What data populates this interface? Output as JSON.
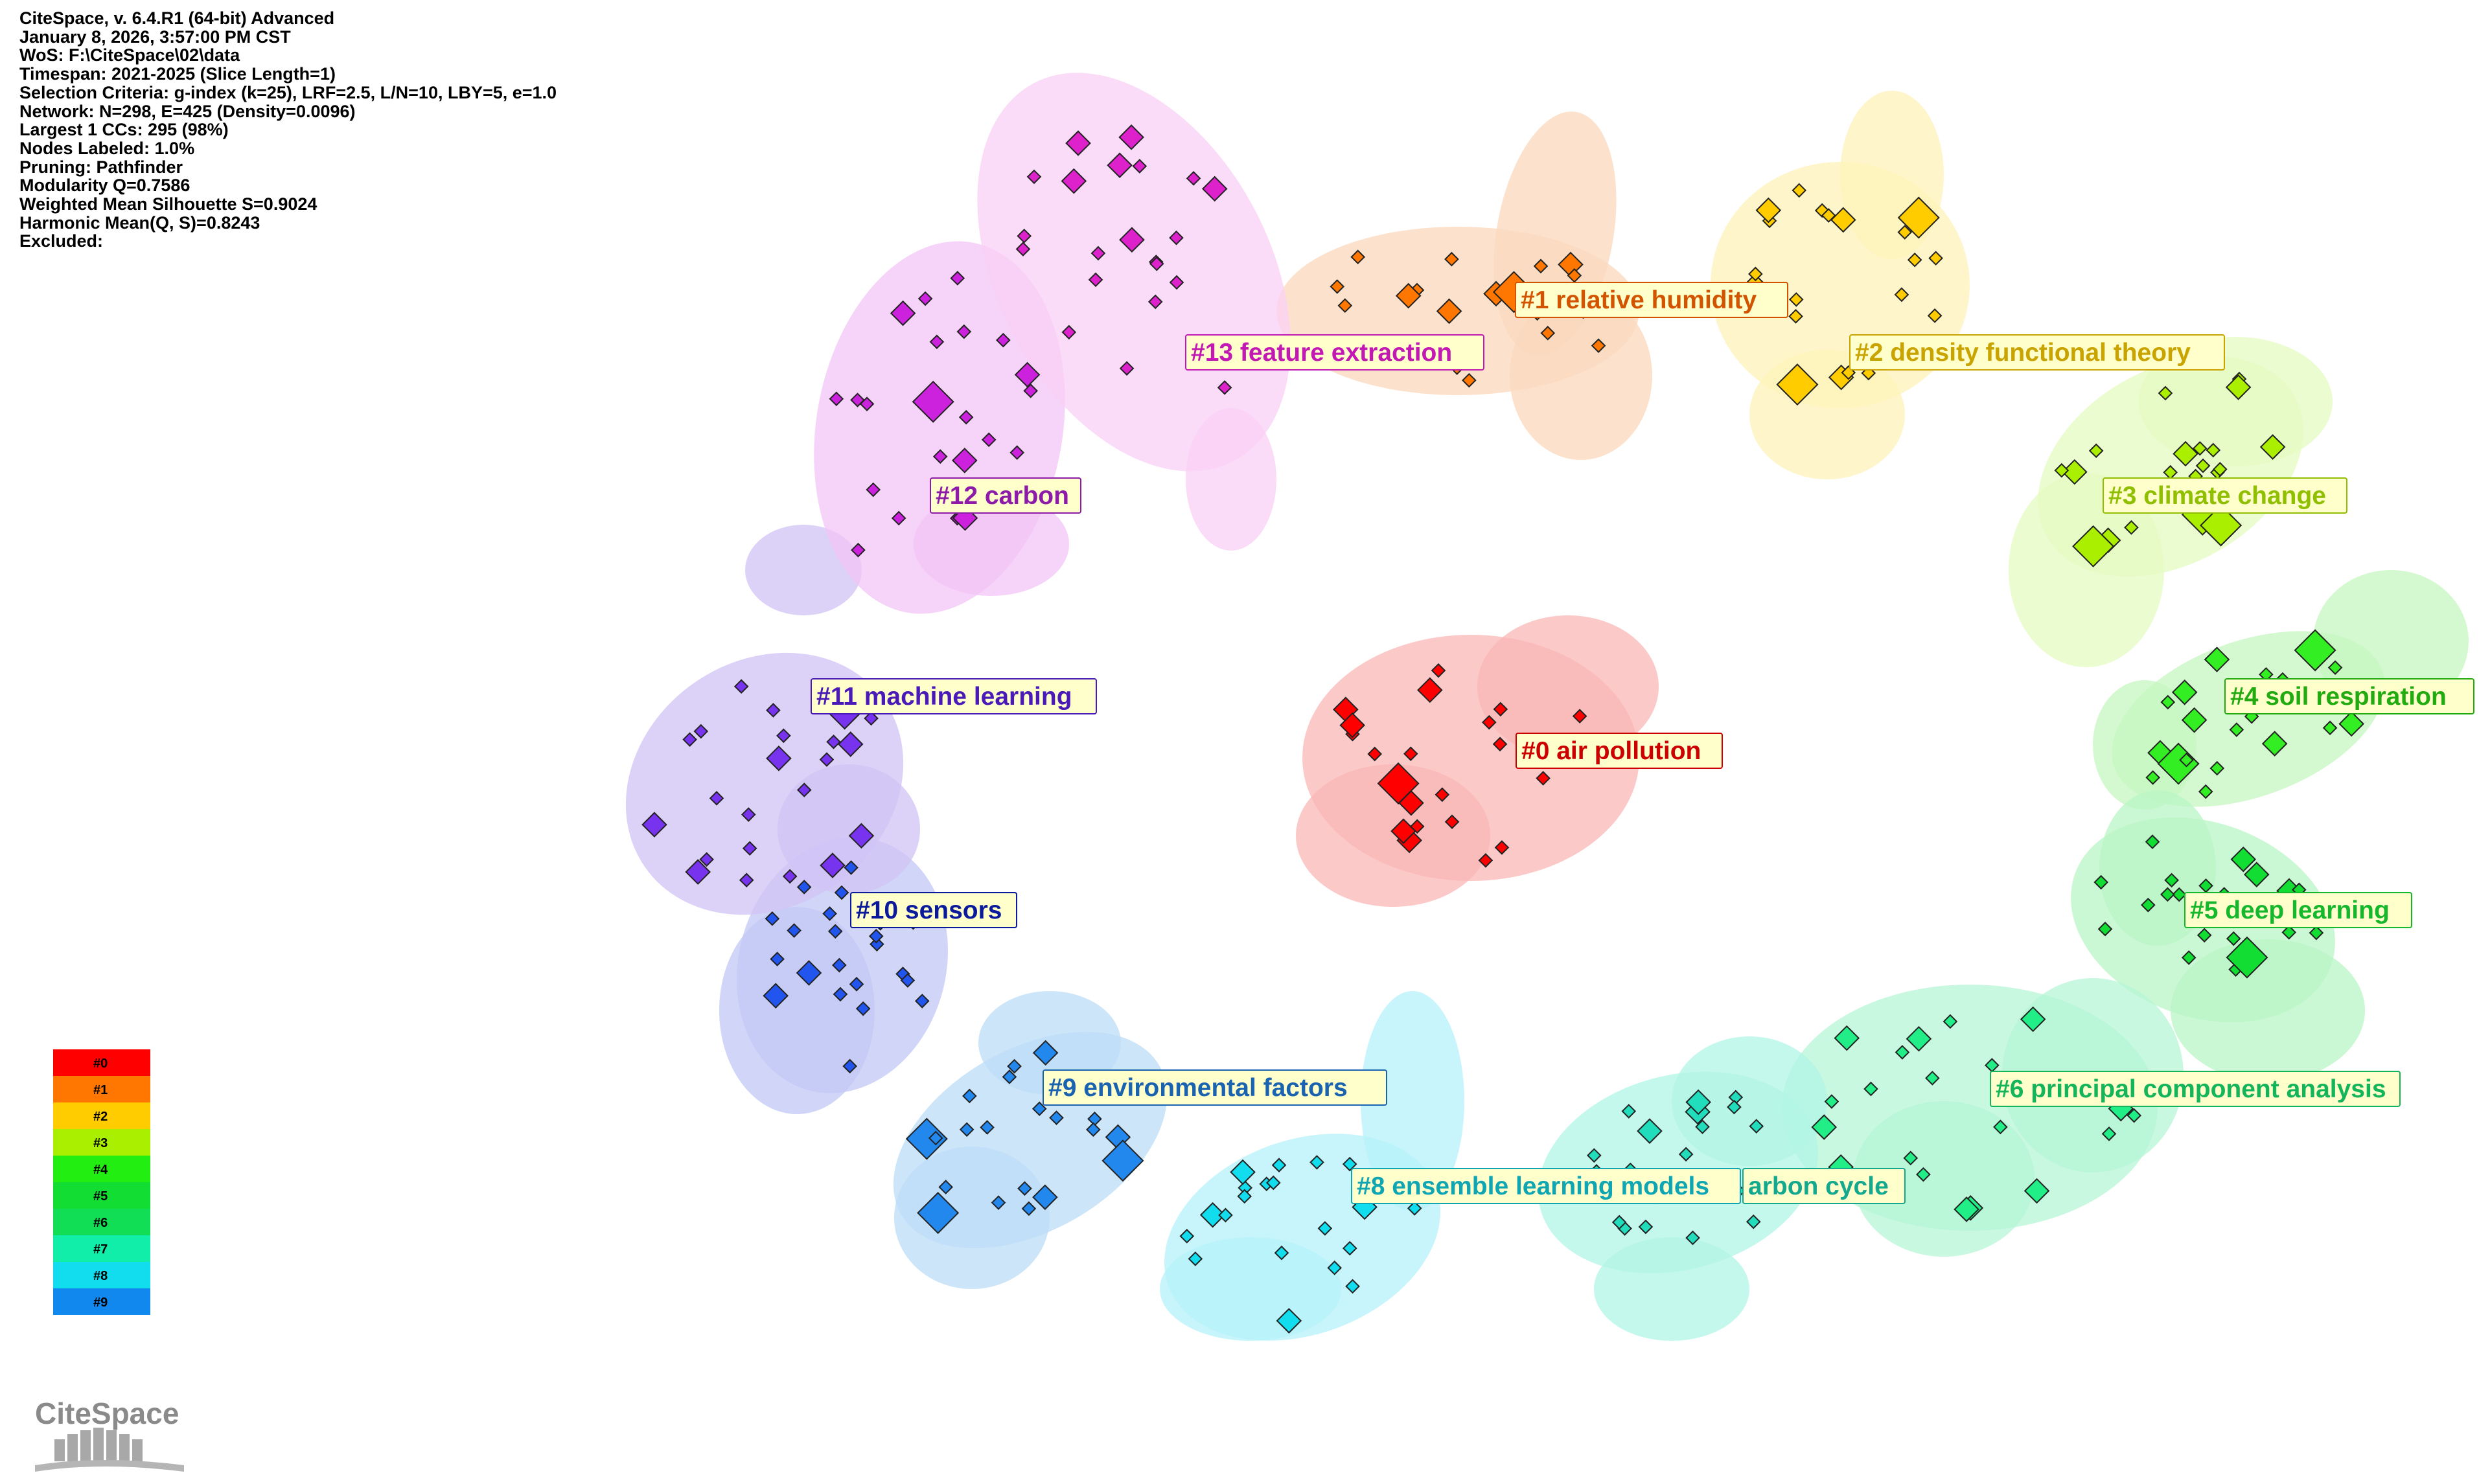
{
  "info_lines": [
    "CiteSpace, v. 6.4.R1 (64-bit) Advanced",
    "January 8, 2026, 3:57:00 PM CST",
    "WoS: F:\\CiteSpace\\02\\data",
    "Timespan: 2021-2025 (Slice Length=1)",
    "Selection Criteria: g-index (k=25), LRF=2.5, L/N=10, LBY=5, e=1.0",
    "Network: N=298, E=425 (Density=0.0096)",
    "Largest 1 CCs: 295 (98%)",
    "Nodes Labeled: 1.0%",
    "Pruning: Pathfinder",
    "Modularity Q=0.7586",
    "Weighted Mean Silhouette S=0.9024",
    "Harmonic Mean(Q, S)=0.8243",
    "Excluded:"
  ],
  "clusters": [
    {
      "id": "#0",
      "label": "#0 air pollution",
      "color": "#ff0000",
      "hull": "#f9b7b5",
      "text": "#cc0000"
    },
    {
      "id": "#1",
      "label": "#1 relative humidity",
      "color": "#ff7700",
      "hull": "#fbd8bc",
      "text": "#d35400"
    },
    {
      "id": "#2",
      "label": "#2 density functional theory",
      "color": "#ffcc00",
      "hull": "#fdf3b8",
      "text": "#c9a300"
    },
    {
      "id": "#3",
      "label": "#3 climate change",
      "color": "#aaee00",
      "hull": "#e6fbc2",
      "text": "#8fbf00"
    },
    {
      "id": "#4",
      "label": "#4 soil respiration",
      "color": "#33ee22",
      "hull": "#c5f7c0",
      "text": "#22aa11"
    },
    {
      "id": "#5",
      "label": "#5 deep learning",
      "color": "#11dd33",
      "hull": "#baf5c5",
      "text": "#15b82c"
    },
    {
      "id": "#6",
      "label": "#6 principal component analysis",
      "color": "#22ee88",
      "hull": "#b6f5d6",
      "text": "#13b45a"
    },
    {
      "id": "#7",
      "label": "arbon cycle",
      "color": "#22ddbb",
      "hull": "#b2f5e6",
      "text": "#14a88e"
    },
    {
      "id": "#8",
      "label": "#8 ensemble learning models",
      "color": "#11ddee",
      "hull": "#b5f2fa",
      "text": "#10a5b3"
    },
    {
      "id": "#9",
      "label": "#9 environmental factors",
      "color": "#2288ee",
      "hull": "#bcdcf7",
      "text": "#1a63b0"
    },
    {
      "id": "#10",
      "label": "#10 sensors",
      "color": "#2255ee",
      "hull": "#c2c8f6",
      "text": "#0a1a9a"
    },
    {
      "id": "#11",
      "label": "#11 machine learning",
      "color": "#7733ee",
      "hull": "#d0c3f6",
      "text": "#4a1ab8"
    },
    {
      "id": "#12",
      "label": "#12 carbon",
      "color": "#cc22dd",
      "hull": "#f3c4f6",
      "text": "#8d1aa8"
    },
    {
      "id": "#13",
      "label": "#13 feature extraction",
      "color": "#dd22cc",
      "hull": "#f9d0f6",
      "text": "#c218b4"
    }
  ],
  "legend": [
    {
      "label": "#0",
      "color": "#ff0000"
    },
    {
      "label": "#1",
      "color": "#ff7700"
    },
    {
      "label": "#2",
      "color": "#ffcc00"
    },
    {
      "label": "#3",
      "color": "#aaee00"
    },
    {
      "label": "#4",
      "color": "#22ee11"
    },
    {
      "label": "#5",
      "color": "#11dd33"
    },
    {
      "label": "#6",
      "color": "#11dd55"
    },
    {
      "label": "#7",
      "color": "#11eeaa"
    },
    {
      "label": "#8",
      "color": "#11ddee"
    },
    {
      "label": "#9",
      "color": "#1188ee"
    }
  ],
  "logo_text": "CiteSpace"
}
